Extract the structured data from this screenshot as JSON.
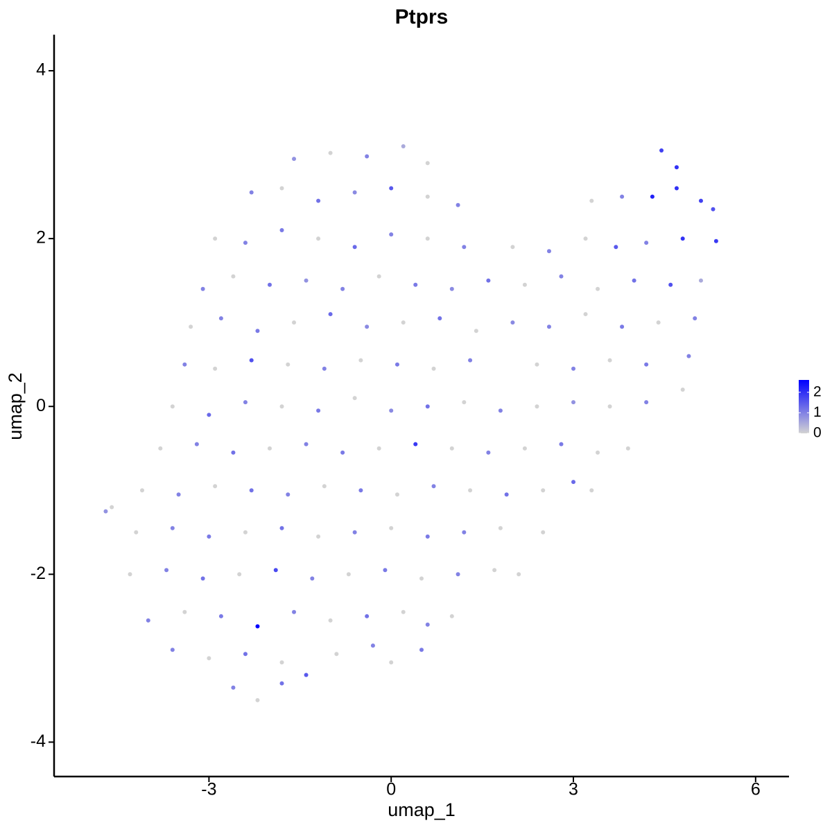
{
  "chart_data": {
    "type": "scatter",
    "title": "Ptprs",
    "x_label": "umap_1",
    "y_label": "umap_2",
    "xlim": [
      -5.55,
      6.55
    ],
    "ylim": [
      -4.41,
      4.43
    ],
    "xticks": [
      -3,
      0,
      3,
      6
    ],
    "yticks": [
      -4,
      -2,
      0,
      2,
      4
    ],
    "colors": [
      "#d3d3d3",
      "#0000ff"
    ],
    "color_lim": [
      0,
      2.6
    ],
    "color_ticks": [
      0,
      1,
      2
    ],
    "x": [
      -1.6,
      -1.0,
      -0.4,
      0.2,
      0.6,
      4.45,
      4.7,
      -2.3,
      -1.8,
      -1.2,
      -0.6,
      0,
      0.6,
      1.1,
      3.3,
      3.8,
      4.3,
      4.7,
      5.1,
      5.3,
      -2.9,
      -2.4,
      -1.8,
      -1.2,
      -0.6,
      0,
      0.6,
      1.2,
      2.0,
      2.6,
      3.2,
      3.7,
      4.2,
      4.8,
      5.35,
      -3.1,
      -2.6,
      -2.0,
      -1.4,
      -0.8,
      -0.2,
      0.4,
      1.0,
      1.6,
      2.2,
      2.8,
      3.4,
      4.0,
      4.6,
      5.1,
      -3.3,
      -2.8,
      -2.2,
      -1.6,
      -1.0,
      -0.4,
      0.2,
      0.8,
      1.4,
      2.0,
      2.6,
      3.2,
      3.8,
      4.4,
      5.0,
      -3.4,
      -2.9,
      -2.3,
      -1.7,
      -1.1,
      -0.5,
      0.1,
      0.7,
      1.3,
      2.4,
      3.0,
      3.6,
      4.2,
      4.9,
      -3.6,
      -3.0,
      -2.4,
      -1.8,
      -1.2,
      -0.6,
      0.0,
      0.6,
      1.2,
      1.8,
      2.4,
      3.0,
      3.6,
      4.2,
      4.8,
      -3.8,
      -3.2,
      -2.6,
      -2.0,
      -1.4,
      -0.8,
      -0.2,
      0.4,
      1.0,
      1.6,
      2.2,
      2.8,
      3.4,
      3.9,
      -4.1,
      -3.5,
      -2.9,
      -2.3,
      -1.7,
      -1.1,
      -0.5,
      0.1,
      0.7,
      1.3,
      1.9,
      2.5,
      3.0,
      3.3,
      -4.7,
      -4.6,
      -4.2,
      -3.6,
      -3.0,
      -2.4,
      -1.8,
      -1.2,
      -0.6,
      0.0,
      0.6,
      1.2,
      1.8,
      2.5,
      -4.3,
      -3.7,
      -3.1,
      -2.5,
      -1.9,
      -1.3,
      -0.7,
      -0.1,
      0.5,
      1.1,
      1.7,
      2.1,
      -4.0,
      -3.4,
      -2.8,
      -2.2,
      -1.6,
      -1.0,
      -0.4,
      0.2,
      0.6,
      1.0,
      -3.6,
      -3.0,
      -2.4,
      -1.8,
      -1.4,
      -0.9,
      -0.3,
      0.0,
      0.5,
      -2.6,
      -2.2,
      -1.8
    ],
    "values": [
      2.95,
      3.02,
      2.98,
      3.1,
      2.9,
      3.05,
      2.85,
      2.55,
      2.6,
      2.45,
      2.55,
      2.6,
      2.5,
      2.4,
      2.45,
      2.5,
      2.5,
      2.6,
      2.45,
      2.35,
      2.0,
      1.95,
      2.1,
      2.0,
      1.9,
      2.05,
      2.0,
      1.9,
      1.9,
      1.85,
      2.0,
      1.9,
      1.95,
      2.0,
      1.97,
      1.4,
      1.55,
      1.45,
      1.5,
      1.4,
      1.55,
      1.45,
      1.4,
      1.5,
      1.45,
      1.55,
      1.4,
      1.5,
      1.45,
      1.5,
      0.95,
      1.05,
      0.9,
      1.0,
      1.1,
      0.95,
      1.0,
      1.05,
      0.9,
      1.0,
      0.95,
      1.1,
      0.95,
      1.0,
      1.05,
      0.5,
      0.45,
      0.55,
      0.5,
      0.45,
      0.55,
      0.5,
      0.45,
      0.55,
      0.5,
      0.45,
      0.55,
      0.5,
      0.6,
      0.0,
      -0.1,
      0.05,
      0.0,
      -0.05,
      0.1,
      -0.05,
      0.0,
      0.05,
      -0.05,
      0.0,
      0.05,
      0.0,
      0.05,
      0.2,
      -0.5,
      -0.45,
      -0.55,
      -0.5,
      -0.45,
      -0.55,
      -0.5,
      -0.45,
      -0.5,
      -0.55,
      -0.5,
      -0.45,
      -0.55,
      -0.5,
      -1.0,
      -1.05,
      -0.95,
      -1.0,
      -1.05,
      -0.95,
      -1.0,
      -1.05,
      -0.95,
      -1.0,
      -1.05,
      -1.0,
      -0.9,
      -1.0,
      -1.25,
      -1.2,
      -1.5,
      -1.45,
      -1.55,
      -1.5,
      -1.45,
      -1.55,
      -1.5,
      -1.45,
      -1.55,
      -1.5,
      -1.45,
      -1.5,
      -2.0,
      -1.95,
      -2.05,
      -2.0,
      -1.95,
      -2.05,
      -2.0,
      -1.95,
      -2.05,
      -2.0,
      -1.95,
      -2.0,
      -2.55,
      -2.45,
      -2.5,
      -2.62,
      -2.45,
      -2.55,
      -2.5,
      -2.45,
      -2.6,
      -2.5,
      -2.9,
      -3.0,
      -2.95,
      -3.05,
      -3.2,
      -2.95,
      -2.85,
      -3.05,
      -2.9,
      -3.35,
      -3.5,
      -3.3
    ],
    "color_values": [
      0.8,
      0,
      1.0,
      0.5,
      0,
      1.8,
      2.0,
      1.0,
      0,
      1.2,
      0.9,
      1.5,
      0,
      1.0,
      0,
      1.0,
      2.2,
      2.0,
      1.8,
      1.6,
      0,
      1.0,
      1.1,
      0,
      1.3,
      1.0,
      0,
      1.0,
      0,
      1.0,
      0,
      1.5,
      1.0,
      2.0,
      1.9,
      1.0,
      0,
      1.2,
      0.8,
      1.0,
      0,
      1.1,
      0.9,
      1.2,
      0,
      1.0,
      0,
      1.2,
      1.6,
      0.5,
      0,
      1.0,
      1.1,
      0,
      1.3,
      0.9,
      0,
      1.2,
      0,
      0.9,
      1.0,
      0,
      1.1,
      0,
      1.0,
      1.0,
      0,
      1.6,
      0,
      1.0,
      0,
      1.1,
      0,
      1.0,
      0,
      1.0,
      0,
      1.1,
      1.0,
      0,
      1.3,
      1.0,
      0,
      1.1,
      0,
      0.9,
      1.2,
      0,
      1.0,
      0,
      0.8,
      0,
      1.0,
      0,
      0,
      1.0,
      1.2,
      0,
      1.0,
      1.1,
      0,
      1.9,
      0,
      1.0,
      0,
      1.1,
      0,
      0,
      0,
      1.0,
      0,
      1.2,
      1.0,
      0,
      1.1,
      0,
      1.0,
      0,
      1.2,
      0,
      1.3,
      0,
      0.8,
      0,
      0,
      1.0,
      1.1,
      0,
      1.2,
      0,
      1.0,
      0,
      1.1,
      1.0,
      0,
      0,
      0,
      1.0,
      1.2,
      0,
      1.7,
      1.0,
      0,
      1.1,
      0,
      1.0,
      0,
      0,
      1.0,
      0,
      1.1,
      2.6,
      1.0,
      0,
      1.2,
      0,
      1.0,
      0,
      1.0,
      0,
      1.2,
      0,
      1.5,
      0,
      1.0,
      0,
      1.1,
      1.0,
      0,
      1.2
    ]
  }
}
